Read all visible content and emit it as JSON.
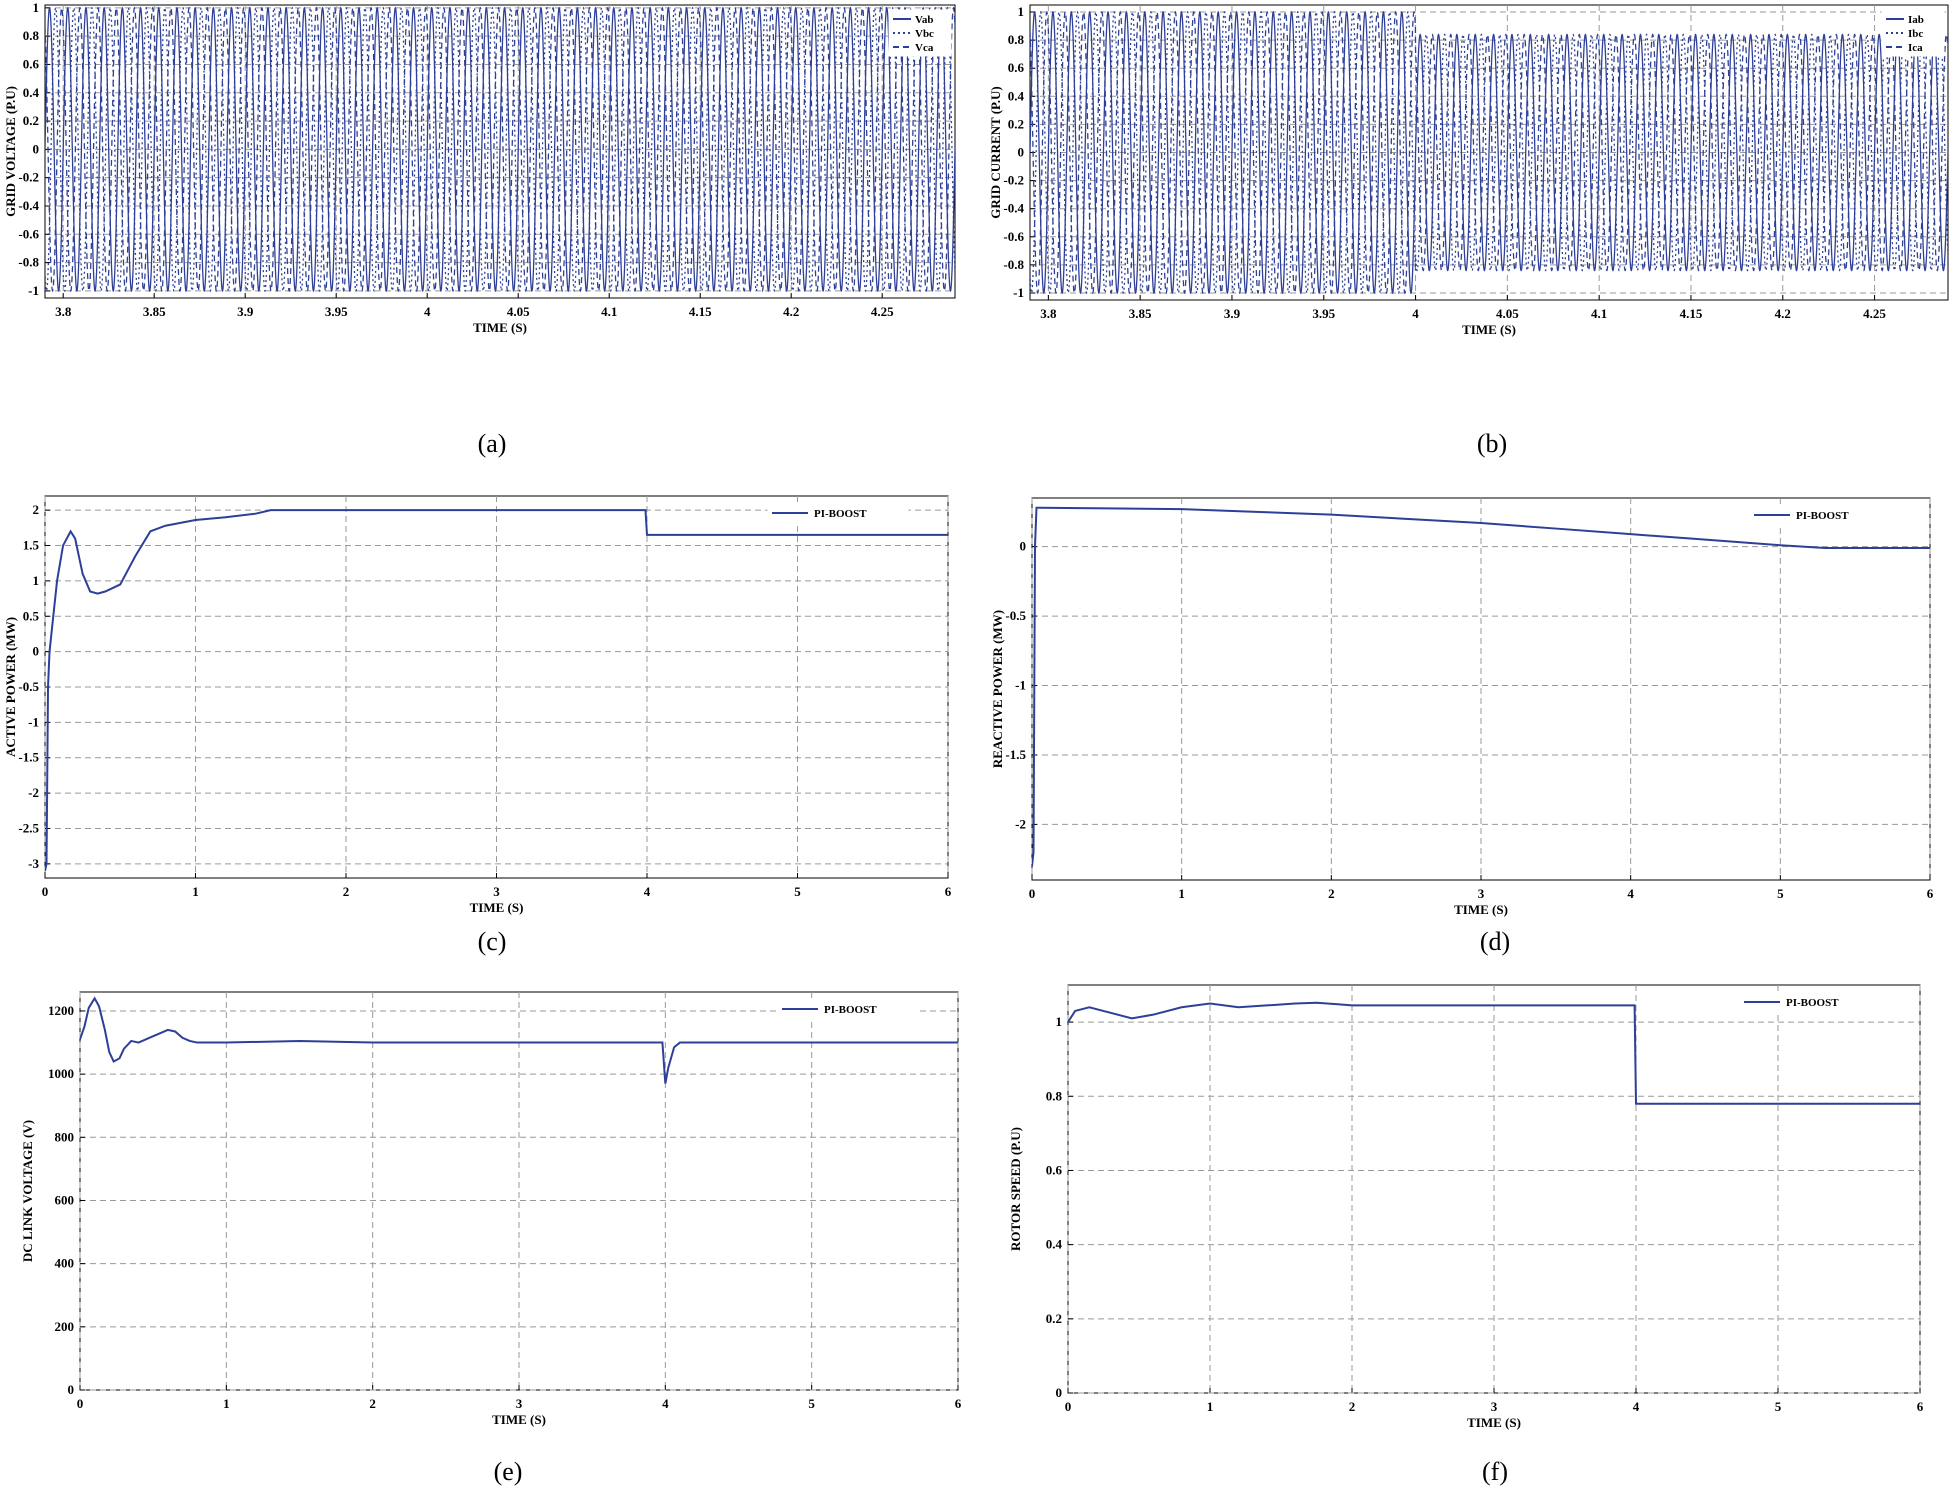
{
  "chart_data": [
    {
      "id": "a",
      "caption": "(a)",
      "type": "line",
      "xlabel": "TIME (S)",
      "ylabel": "GRID VOLTAGE (P.U)",
      "xlim": [
        3.79,
        4.29
      ],
      "ylim": [
        -1.05,
        1.02
      ],
      "xticks": [
        3.8,
        3.85,
        3.9,
        3.95,
        4,
        4.05,
        4.1,
        4.15,
        4.2,
        4.25
      ],
      "xtick_labels": [
        "3.8",
        "3.85",
        "3.9",
        "3.95",
        "4",
        "4.05",
        "4.1",
        "4.15",
        "4.2",
        "4.25"
      ],
      "yticks": [
        -1,
        -0.8,
        -0.6,
        -0.4,
        -0.2,
        0,
        0.2,
        0.4,
        0.6,
        0.8,
        1
      ],
      "ytick_labels": [
        "-1",
        "-0.8",
        "-0.6",
        "-0.4",
        "-0.2",
        "0",
        "0.2",
        "0.4",
        "0.6",
        "0.8",
        "1"
      ],
      "grid": true,
      "legend": "top-right",
      "waveform": {
        "kind": "three-phase-sine",
        "frequency_hz": 100,
        "amplitude": 1.0
      },
      "series": [
        {
          "name": "Vab",
          "phase_deg": 0,
          "style": "solid"
        },
        {
          "name": "Vbc",
          "phase_deg": -120,
          "style": "dotted"
        },
        {
          "name": "Vca",
          "phase_deg": 120,
          "style": "dashed"
        }
      ],
      "color": "#2e3f98"
    },
    {
      "id": "b",
      "caption": "(b)",
      "type": "line",
      "xlabel": "TIME (S)",
      "ylabel": "GRID CURRENT (P.U)",
      "xlim": [
        3.79,
        4.29
      ],
      "ylim": [
        -1.05,
        1.05
      ],
      "xticks": [
        3.8,
        3.85,
        3.9,
        3.95,
        4,
        4.05,
        4.1,
        4.15,
        4.2,
        4.25
      ],
      "xtick_labels": [
        "3.8",
        "3.85",
        "3.9",
        "3.95",
        "4",
        "4.05",
        "4.1",
        "4.15",
        "4.2",
        "4.25"
      ],
      "yticks": [
        -1,
        -0.8,
        -0.6,
        -0.4,
        -0.2,
        0,
        0.2,
        0.4,
        0.6,
        0.8,
        1
      ],
      "ytick_labels": [
        "-1",
        "-0.8",
        "-0.6",
        "-0.4",
        "-0.2",
        "0",
        "0.2",
        "0.4",
        "0.6",
        "0.8",
        "1"
      ],
      "grid": true,
      "legend": "top-right",
      "waveform": {
        "kind": "three-phase-sine-step",
        "frequency_hz": 100,
        "amplitude_before": 1.0,
        "amplitude_after": 0.84,
        "step_time": 4.0
      },
      "series": [
        {
          "name": "Iab",
          "phase_deg": 0,
          "style": "solid"
        },
        {
          "name": "Ibc",
          "phase_deg": -120,
          "style": "dotted"
        },
        {
          "name": "Ica",
          "phase_deg": 120,
          "style": "dashed"
        }
      ],
      "color": "#2e3f98"
    },
    {
      "id": "c",
      "caption": "(c)",
      "type": "line",
      "xlabel": "TIME (S)",
      "ylabel": "ACTIVE POWER (MW)",
      "xlim": [
        0,
        6
      ],
      "ylim": [
        -3.2,
        2.2
      ],
      "xticks": [
        0,
        1,
        2,
        3,
        4,
        5,
        6
      ],
      "xtick_labels": [
        "0",
        "1",
        "2",
        "3",
        "4",
        "5",
        "6"
      ],
      "yticks": [
        -3,
        -2.5,
        -2,
        -1.5,
        -1,
        -0.5,
        0,
        0.5,
        1,
        1.5,
        2
      ],
      "ytick_labels": [
        "-3",
        "-2.5",
        "-2",
        "-1.5",
        "-1",
        "-0.5",
        "0",
        "0.5",
        "1",
        "1.5",
        "2"
      ],
      "grid": true,
      "legend": "top-right",
      "series": [
        {
          "name": "PI-BOOST",
          "x": [
            0,
            0.01,
            0.02,
            0.03,
            0.05,
            0.08,
            0.12,
            0.17,
            0.2,
            0.25,
            0.3,
            0.35,
            0.4,
            0.5,
            0.6,
            0.7,
            0.8,
            1.0,
            1.2,
            1.4,
            1.5,
            2.0,
            3.0,
            3.99,
            4.0,
            4.01,
            5.0,
            6.0
          ],
          "y": [
            -3.1,
            -3.0,
            -0.5,
            0.0,
            0.4,
            1.0,
            1.5,
            1.7,
            1.6,
            1.1,
            0.85,
            0.82,
            0.85,
            0.95,
            1.35,
            1.7,
            1.78,
            1.86,
            1.9,
            1.95,
            2.0,
            2.0,
            2.0,
            2.0,
            1.65,
            1.65,
            1.65,
            1.65
          ]
        }
      ],
      "color": "#2e3f98"
    },
    {
      "id": "d",
      "caption": "(d)",
      "type": "line",
      "xlabel": "TIME (S)",
      "ylabel": "REACTIVE POWER (MW)",
      "xlim": [
        0,
        6
      ],
      "ylim": [
        -2.4,
        0.35
      ],
      "xticks": [
        0,
        1,
        2,
        3,
        4,
        5,
        6
      ],
      "xtick_labels": [
        "0",
        "1",
        "2",
        "3",
        "4",
        "5",
        "6"
      ],
      "yticks": [
        -2,
        -1.5,
        -1,
        -0.5,
        0
      ],
      "ytick_labels": [
        "-2",
        "-1.5",
        "-1",
        "-0.5",
        "0"
      ],
      "grid": true,
      "legend": "top-right",
      "series": [
        {
          "name": "PI-BOOST",
          "x": [
            0,
            0.01,
            0.02,
            0.03,
            0.05,
            0.5,
            1.0,
            1.5,
            2.0,
            2.5,
            3.0,
            3.5,
            4.0,
            4.5,
            5.0,
            5.3,
            5.5,
            6.0
          ],
          "y": [
            -2.3,
            -2.2,
            0.0,
            0.28,
            0.28,
            0.275,
            0.27,
            0.25,
            0.23,
            0.2,
            0.17,
            0.13,
            0.09,
            0.05,
            0.01,
            -0.01,
            -0.01,
            -0.01
          ]
        }
      ],
      "color": "#2e3f98"
    },
    {
      "id": "e",
      "caption": "(e)",
      "type": "line",
      "xlabel": "TIME (S)",
      "ylabel": "DC LINK VOLTAGE (V)",
      "xlim": [
        0,
        6
      ],
      "ylim": [
        0,
        1260
      ],
      "xticks": [
        0,
        1,
        2,
        3,
        4,
        5,
        6
      ],
      "xtick_labels": [
        "0",
        "1",
        "2",
        "3",
        "4",
        "5",
        "6"
      ],
      "yticks": [
        0,
        200,
        400,
        600,
        800,
        1000,
        1200
      ],
      "ytick_labels": [
        "0",
        "200",
        "400",
        "600",
        "800",
        "1000",
        "1200"
      ],
      "grid": true,
      "legend": "top-right",
      "series": [
        {
          "name": "PI-BOOST",
          "x": [
            0,
            0.03,
            0.06,
            0.1,
            0.13,
            0.17,
            0.2,
            0.23,
            0.27,
            0.3,
            0.35,
            0.4,
            0.5,
            0.6,
            0.65,
            0.7,
            0.75,
            0.8,
            0.9,
            1.0,
            1.5,
            2.0,
            3.0,
            3.98,
            4.0,
            4.02,
            4.06,
            4.1,
            5.0,
            6.0
          ],
          "y": [
            1110,
            1150,
            1210,
            1240,
            1215,
            1140,
            1070,
            1040,
            1050,
            1080,
            1105,
            1100,
            1120,
            1140,
            1135,
            1115,
            1105,
            1100,
            1100,
            1100,
            1105,
            1100,
            1100,
            1100,
            970,
            1020,
            1085,
            1100,
            1100,
            1100
          ]
        }
      ],
      "color": "#2e3f98"
    },
    {
      "id": "f",
      "caption": "(f)",
      "type": "line",
      "xlabel": "TIME (S)",
      "ylabel": "ROTOR SPEED (P.U)",
      "xlim": [
        0,
        6
      ],
      "ylim": [
        0,
        1.1
      ],
      "xticks": [
        0,
        1,
        2,
        3,
        4,
        5,
        6
      ],
      "xtick_labels": [
        "0",
        "1",
        "2",
        "3",
        "4",
        "5",
        "6"
      ],
      "yticks": [
        0,
        0.2,
        0.4,
        0.6,
        0.8,
        1
      ],
      "ytick_labels": [
        "0",
        "0.2",
        "0.4",
        "0.6",
        "0.8",
        "1"
      ],
      "grid": true,
      "legend": "top-right",
      "series": [
        {
          "name": "PI-BOOST",
          "x": [
            0,
            0.05,
            0.15,
            0.3,
            0.45,
            0.6,
            0.8,
            1.0,
            1.2,
            1.4,
            1.6,
            1.75,
            1.9,
            2.0,
            3.0,
            3.99,
            4.0,
            5.0,
            6.0
          ],
          "y": [
            1.0,
            1.03,
            1.04,
            1.025,
            1.01,
            1.02,
            1.04,
            1.05,
            1.04,
            1.045,
            1.05,
            1.052,
            1.048,
            1.045,
            1.045,
            1.045,
            0.78,
            0.78,
            0.78
          ]
        }
      ],
      "color": "#2e3f98"
    }
  ]
}
